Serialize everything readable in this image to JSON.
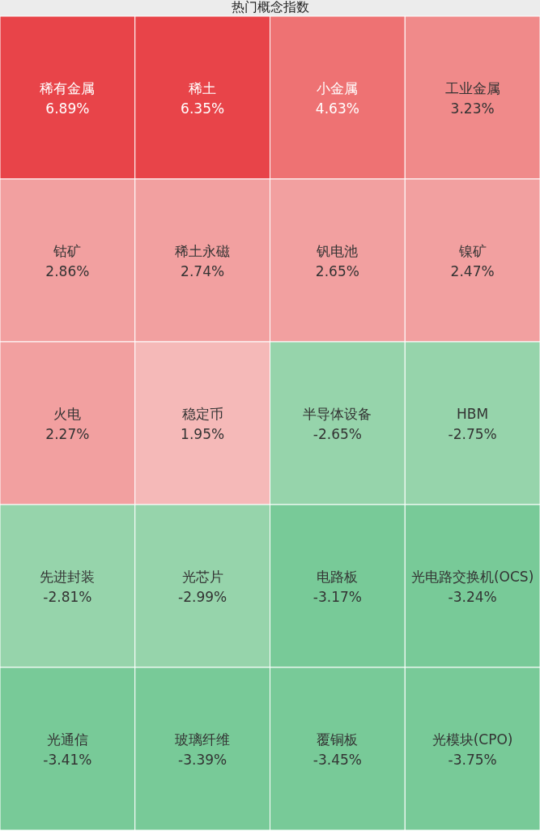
{
  "chart_data": {
    "type": "other",
    "title": "热门概念指数",
    "categories": [
      "稀有金属",
      "稀土",
      "小金属",
      "工业金属",
      "钴矿",
      "稀土永磁",
      "钒电池",
      "镍矿",
      "火电",
      "稳定币",
      "半导体设备",
      "HBM",
      "先进封装",
      "光芯片",
      "电路板",
      "光电路交换机(OCS)",
      "光通信",
      "玻璃纤维",
      "覆铜板",
      "光模块(CPO)"
    ],
    "values": [
      6.89,
      6.35,
      4.63,
      3.23,
      2.86,
      2.74,
      2.65,
      2.47,
      2.27,
      1.95,
      -2.65,
      -2.75,
      -2.81,
      -2.99,
      -3.17,
      -3.24,
      -3.41,
      -3.39,
      -3.45,
      -3.75
    ],
    "value_labels": [
      "6.89%",
      "6.35%",
      "4.63%",
      "3.23%",
      "2.86%",
      "2.74%",
      "2.65%",
      "2.47%",
      "2.27%",
      "1.95%",
      "-2.65%",
      "-2.75%",
      "-2.81%",
      "-2.99%",
      "-3.17%",
      "-3.24%",
      "-3.41%",
      "-3.39%",
      "-3.45%",
      "-3.75%"
    ],
    "colors": [
      "#e84449",
      "#e84449",
      "#ee7273",
      "#f08a8a",
      "#f2a0a0",
      "#f2a0a0",
      "#f2a0a0",
      "#f2a0a0",
      "#f2a0a0",
      "#f5b9b8",
      "#96d4ab",
      "#96d4ab",
      "#96d4ab",
      "#96d4ab",
      "#78ca98",
      "#78ca98",
      "#78ca98",
      "#78ca98",
      "#78ca98",
      "#78ca98"
    ]
  }
}
